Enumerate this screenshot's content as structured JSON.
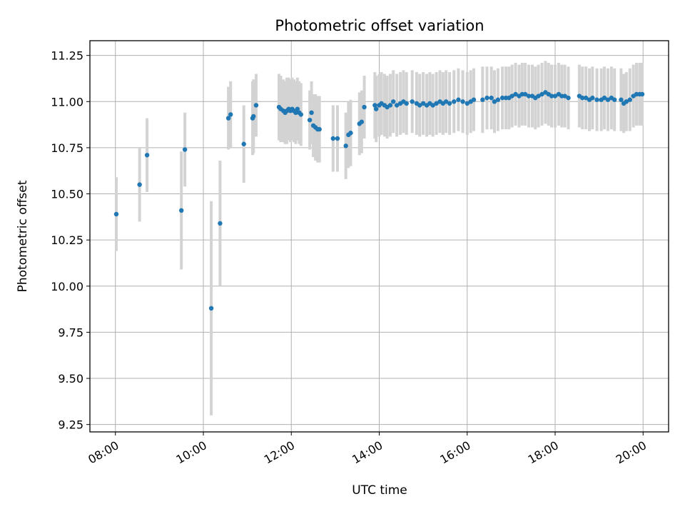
{
  "chart_data": {
    "type": "scatter",
    "title": "Photometric offset variation",
    "xlabel": "UTC time",
    "ylabel": "Photometric offset",
    "xlim": [
      7.42,
      20.58
    ],
    "ylim": [
      9.21,
      11.33
    ],
    "x_ticks": [
      {
        "value": 8,
        "label": "08:00"
      },
      {
        "value": 10,
        "label": "10:00"
      },
      {
        "value": 12,
        "label": "12:00"
      },
      {
        "value": 14,
        "label": "14:00"
      },
      {
        "value": 16,
        "label": "16:00"
      },
      {
        "value": 18,
        "label": "18:00"
      },
      {
        "value": 20,
        "label": "20:00"
      }
    ],
    "y_ticks": [
      {
        "value": 9.25,
        "label": "9.25"
      },
      {
        "value": 9.5,
        "label": "9.50"
      },
      {
        "value": 9.75,
        "label": "9.75"
      },
      {
        "value": 10.0,
        "label": "10.00"
      },
      {
        "value": 10.25,
        "label": "10.25"
      },
      {
        "value": 10.5,
        "label": "10.50"
      },
      {
        "value": 10.75,
        "label": "10.75"
      },
      {
        "value": 11.0,
        "label": "11.00"
      },
      {
        "value": 11.25,
        "label": "11.25"
      }
    ],
    "grid": true,
    "colors": {
      "points": "#1f77b4",
      "errorbars": "#d3d3d3",
      "grid": "#b0b0b0"
    },
    "points": [
      [
        8.02,
        10.39,
        0.2
      ],
      [
        8.55,
        10.55,
        0.2
      ],
      [
        8.72,
        10.71,
        0.2
      ],
      [
        9.5,
        10.41,
        0.32
      ],
      [
        9.58,
        10.74,
        0.2
      ],
      [
        10.18,
        9.88,
        0.58
      ],
      [
        10.38,
        10.34,
        0.34
      ],
      [
        10.57,
        10.91,
        0.17
      ],
      [
        10.62,
        10.93,
        0.18
      ],
      [
        10.92,
        10.77,
        0.21
      ],
      [
        11.12,
        10.91,
        0.2
      ],
      [
        11.14,
        10.92,
        0.2
      ],
      [
        11.2,
        10.98,
        0.17
      ],
      [
        11.72,
        10.97,
        0.18
      ],
      [
        11.76,
        10.96,
        0.18
      ],
      [
        11.82,
        10.95,
        0.17
      ],
      [
        11.86,
        10.94,
        0.17
      ],
      [
        11.9,
        10.95,
        0.18
      ],
      [
        11.94,
        10.96,
        0.17
      ],
      [
        11.98,
        10.95,
        0.17
      ],
      [
        12.02,
        10.96,
        0.17
      ],
      [
        12.06,
        10.95,
        0.17
      ],
      [
        12.1,
        10.94,
        0.17
      ],
      [
        12.14,
        10.96,
        0.17
      ],
      [
        12.18,
        10.94,
        0.17
      ],
      [
        12.22,
        10.93,
        0.17
      ],
      [
        12.42,
        10.9,
        0.16
      ],
      [
        12.46,
        10.94,
        0.17
      ],
      [
        12.5,
        10.87,
        0.17
      ],
      [
        12.55,
        10.86,
        0.18
      ],
      [
        12.6,
        10.85,
        0.18
      ],
      [
        12.64,
        10.85,
        0.18
      ],
      [
        12.95,
        10.8,
        0.18
      ],
      [
        13.05,
        10.8,
        0.18
      ],
      [
        13.24,
        10.76,
        0.18
      ],
      [
        13.3,
        10.82,
        0.18
      ],
      [
        13.35,
        10.83,
        0.18
      ],
      [
        13.55,
        10.88,
        0.17
      ],
      [
        13.6,
        10.89,
        0.17
      ],
      [
        13.66,
        10.97,
        0.17
      ],
      [
        13.9,
        10.98,
        0.18
      ],
      [
        13.93,
        10.96,
        0.18
      ],
      [
        14.0,
        10.98,
        0.17
      ],
      [
        14.05,
        10.99,
        0.17
      ],
      [
        14.12,
        10.98,
        0.17
      ],
      [
        14.18,
        10.97,
        0.17
      ],
      [
        14.25,
        10.98,
        0.17
      ],
      [
        14.32,
        11.0,
        0.17
      ],
      [
        14.4,
        10.98,
        0.17
      ],
      [
        14.48,
        10.99,
        0.17
      ],
      [
        14.55,
        11.0,
        0.17
      ],
      [
        14.62,
        10.99,
        0.17
      ],
      [
        14.75,
        11.0,
        0.17
      ],
      [
        14.85,
        10.99,
        0.17
      ],
      [
        14.92,
        10.98,
        0.17
      ],
      [
        15.0,
        10.99,
        0.17
      ],
      [
        15.08,
        10.98,
        0.17
      ],
      [
        15.15,
        10.99,
        0.17
      ],
      [
        15.22,
        10.98,
        0.17
      ],
      [
        15.3,
        10.99,
        0.17
      ],
      [
        15.38,
        11.0,
        0.17
      ],
      [
        15.45,
        10.99,
        0.17
      ],
      [
        15.52,
        11.0,
        0.17
      ],
      [
        15.6,
        10.99,
        0.17
      ],
      [
        15.7,
        11.0,
        0.17
      ],
      [
        15.8,
        11.01,
        0.17
      ],
      [
        15.9,
        11.0,
        0.17
      ],
      [
        16.0,
        10.99,
        0.17
      ],
      [
        16.08,
        11.0,
        0.17
      ],
      [
        16.15,
        11.01,
        0.17
      ],
      [
        16.35,
        11.01,
        0.18
      ],
      [
        16.45,
        11.02,
        0.17
      ],
      [
        16.55,
        11.02,
        0.17
      ],
      [
        16.62,
        11.0,
        0.17
      ],
      [
        16.7,
        11.01,
        0.17
      ],
      [
        16.8,
        11.02,
        0.17
      ],
      [
        16.88,
        11.02,
        0.17
      ],
      [
        16.95,
        11.02,
        0.17
      ],
      [
        17.02,
        11.03,
        0.17
      ],
      [
        17.1,
        11.04,
        0.17
      ],
      [
        17.18,
        11.03,
        0.17
      ],
      [
        17.25,
        11.04,
        0.17
      ],
      [
        17.32,
        11.04,
        0.17
      ],
      [
        17.4,
        11.03,
        0.17
      ],
      [
        17.48,
        11.03,
        0.17
      ],
      [
        17.55,
        11.02,
        0.17
      ],
      [
        17.62,
        11.03,
        0.17
      ],
      [
        17.7,
        11.04,
        0.17
      ],
      [
        17.78,
        11.05,
        0.17
      ],
      [
        17.85,
        11.04,
        0.17
      ],
      [
        17.92,
        11.03,
        0.17
      ],
      [
        18.0,
        11.03,
        0.17
      ],
      [
        18.08,
        11.04,
        0.17
      ],
      [
        18.15,
        11.03,
        0.17
      ],
      [
        18.22,
        11.03,
        0.17
      ],
      [
        18.3,
        11.02,
        0.17
      ],
      [
        18.55,
        11.03,
        0.17
      ],
      [
        18.62,
        11.02,
        0.17
      ],
      [
        18.7,
        11.02,
        0.17
      ],
      [
        18.78,
        11.01,
        0.17
      ],
      [
        18.85,
        11.02,
        0.17
      ],
      [
        18.95,
        11.01,
        0.17
      ],
      [
        19.05,
        11.01,
        0.17
      ],
      [
        19.12,
        11.02,
        0.17
      ],
      [
        19.2,
        11.01,
        0.17
      ],
      [
        19.28,
        11.02,
        0.17
      ],
      [
        19.35,
        11.01,
        0.17
      ],
      [
        19.5,
        11.01,
        0.17
      ],
      [
        19.56,
        10.99,
        0.16
      ],
      [
        19.62,
        11.0,
        0.16
      ],
      [
        19.7,
        11.01,
        0.17
      ],
      [
        19.78,
        11.03,
        0.17
      ],
      [
        19.85,
        11.04,
        0.17
      ],
      [
        19.92,
        11.04,
        0.17
      ],
      [
        19.98,
        11.04,
        0.17
      ]
    ]
  }
}
